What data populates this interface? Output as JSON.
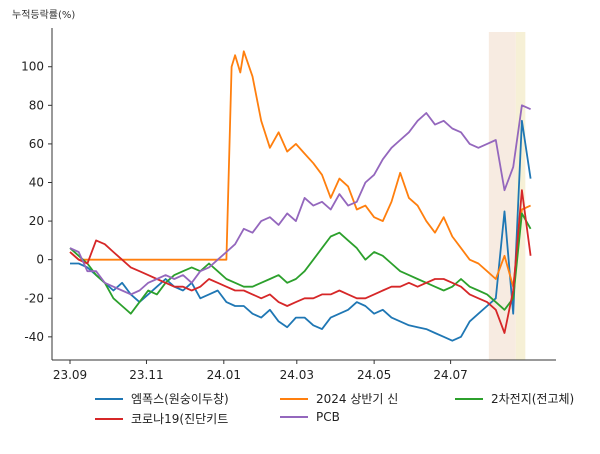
{
  "chart_data": {
    "type": "line",
    "title": "",
    "unit_label": "누적등락률(%)",
    "xlabel": "",
    "ylabel": "누적등락률(%)",
    "ylim": [
      -52,
      118
    ],
    "xlim": [
      0,
      58
    ],
    "yticks": [
      -40,
      -20,
      0,
      20,
      40,
      60,
      80,
      100
    ],
    "xticks": [
      {
        "label": "23.09",
        "x": 0
      },
      {
        "label": "23.11",
        "x": 8.8
      },
      {
        "label": "24.01",
        "x": 17.7
      },
      {
        "label": "24.03",
        "x": 26.1
      },
      {
        "label": "24.05",
        "x": 35
      },
      {
        "label": "24.07",
        "x": 43.8
      }
    ],
    "highlight_bands": [
      {
        "x0": 48.2,
        "x1": 51.3,
        "color": "#f7ebe1"
      },
      {
        "x0": 51.3,
        "x1": 52.4,
        "color": "#f6f0d6"
      }
    ],
    "legend_position": "bottom",
    "series": [
      {
        "name": "엠폭스(원숭이두창)",
        "color": "#1f77b4",
        "x": [
          0,
          1,
          2,
          3,
          4,
          5,
          6,
          7,
          8,
          9,
          10,
          11,
          12,
          13,
          14,
          15,
          16,
          17,
          18,
          19,
          20,
          21,
          22,
          23,
          24,
          25,
          26,
          27,
          28,
          29,
          30,
          31,
          32,
          33,
          34,
          35,
          36,
          37,
          38,
          39,
          40,
          41,
          42,
          43,
          44,
          45,
          46,
          47,
          48,
          49,
          50,
          51,
          52,
          53
        ],
        "values": [
          -2,
          -2,
          -4,
          -8,
          -12,
          -16,
          -12,
          -18,
          -22,
          -18,
          -14,
          -10,
          -14,
          -16,
          -12,
          -20,
          -18,
          -16,
          -22,
          -24,
          -24,
          -28,
          -30,
          -26,
          -32,
          -35,
          -30,
          -30,
          -34,
          -36,
          -30,
          -28,
          -26,
          -22,
          -24,
          -28,
          -26,
          -30,
          -32,
          -34,
          -35,
          -36,
          -38,
          -40,
          -42,
          -40,
          -32,
          -28,
          -24,
          -20,
          25,
          -28,
          72,
          42
        ]
      },
      {
        "name": "2024 상반기 신",
        "color": "#ff7f0e",
        "x": [
          0,
          1,
          2,
          3,
          4,
          5,
          6,
          7,
          8,
          9,
          10,
          11,
          12,
          13,
          14,
          15,
          16,
          17,
          18,
          18.6,
          19,
          19.6,
          20,
          21,
          22,
          23,
          24,
          25,
          26,
          27,
          28,
          29,
          30,
          31,
          32,
          33,
          34,
          35,
          36,
          37,
          38,
          39,
          40,
          41,
          42,
          43,
          44,
          45,
          46,
          47,
          48,
          49,
          50,
          51,
          52,
          53
        ],
        "values": [
          4,
          0,
          0,
          0,
          0,
          0,
          0,
          0,
          0,
          0,
          0,
          0,
          0,
          0,
          0,
          0,
          0,
          0,
          0,
          100,
          106,
          97,
          108,
          95,
          72,
          58,
          66,
          56,
          60,
          55,
          50,
          44,
          32,
          42,
          38,
          26,
          28,
          22,
          20,
          30,
          45,
          32,
          28,
          20,
          14,
          22,
          12,
          6,
          0,
          -2,
          -6,
          -10,
          2,
          -14,
          26,
          28
        ]
      },
      {
        "name": "2차전지(전고체)",
        "color": "#2ca02c",
        "x": [
          0,
          1,
          2,
          3,
          4,
          5,
          6,
          7,
          8,
          9,
          10,
          11,
          12,
          13,
          14,
          15,
          16,
          17,
          18,
          19,
          20,
          21,
          22,
          23,
          24,
          25,
          26,
          27,
          28,
          29,
          30,
          31,
          32,
          33,
          34,
          35,
          36,
          37,
          38,
          39,
          40,
          41,
          42,
          43,
          44,
          45,
          46,
          47,
          48,
          49,
          50,
          51,
          52,
          53
        ],
        "values": [
          6,
          2,
          -2,
          -8,
          -12,
          -20,
          -24,
          -28,
          -22,
          -16,
          -18,
          -12,
          -8,
          -6,
          -4,
          -6,
          -2,
          -6,
          -10,
          -12,
          -14,
          -14,
          -12,
          -10,
          -8,
          -12,
          -10,
          -6,
          0,
          6,
          12,
          14,
          10,
          6,
          0,
          4,
          2,
          -2,
          -6,
          -8,
          -10,
          -12,
          -14,
          -16,
          -14,
          -10,
          -14,
          -16,
          -18,
          -22,
          -26,
          -20,
          24,
          16
        ]
      },
      {
        "name": "코로나19(진단키트",
        "color": "#d62728",
        "x": [
          0,
          1,
          2,
          3,
          4,
          5,
          6,
          7,
          8,
          9,
          10,
          11,
          12,
          13,
          14,
          15,
          16,
          17,
          18,
          19,
          20,
          21,
          22,
          23,
          24,
          25,
          26,
          27,
          28,
          29,
          30,
          31,
          32,
          33,
          34,
          35,
          36,
          37,
          38,
          39,
          40,
          41,
          42,
          43,
          44,
          45,
          46,
          47,
          48,
          49,
          50,
          51,
          52,
          53
        ],
        "values": [
          4,
          0,
          -2,
          10,
          8,
          4,
          0,
          -4,
          -6,
          -8,
          -10,
          -12,
          -14,
          -14,
          -16,
          -14,
          -10,
          -12,
          -14,
          -16,
          -16,
          -18,
          -20,
          -18,
          -22,
          -24,
          -22,
          -20,
          -20,
          -18,
          -18,
          -16,
          -18,
          -20,
          -20,
          -18,
          -16,
          -14,
          -14,
          -12,
          -14,
          -12,
          -10,
          -10,
          -12,
          -14,
          -18,
          -20,
          -22,
          -26,
          -38,
          -16,
          36,
          2
        ]
      },
      {
        "name": "PCB",
        "color": "#9467bd",
        "x": [
          0,
          1,
          2,
          3,
          4,
          5,
          6,
          7,
          8,
          9,
          10,
          11,
          12,
          13,
          14,
          15,
          16,
          17,
          18,
          19,
          20,
          21,
          22,
          23,
          24,
          25,
          26,
          27,
          28,
          29,
          30,
          31,
          32,
          33,
          34,
          35,
          36,
          37,
          38,
          39,
          40,
          41,
          42,
          43,
          44,
          45,
          46,
          47,
          48,
          49,
          50,
          51,
          52,
          53
        ],
        "values": [
          6,
          4,
          -6,
          -6,
          -12,
          -14,
          -16,
          -18,
          -16,
          -12,
          -10,
          -8,
          -10,
          -8,
          -12,
          -6,
          -4,
          0,
          4,
          8,
          16,
          14,
          20,
          22,
          18,
          24,
          20,
          32,
          28,
          30,
          26,
          34,
          28,
          30,
          40,
          44,
          52,
          58,
          62,
          66,
          72,
          76,
          70,
          72,
          68,
          66,
          60,
          58,
          60,
          62,
          36,
          48,
          80,
          78
        ]
      }
    ]
  }
}
